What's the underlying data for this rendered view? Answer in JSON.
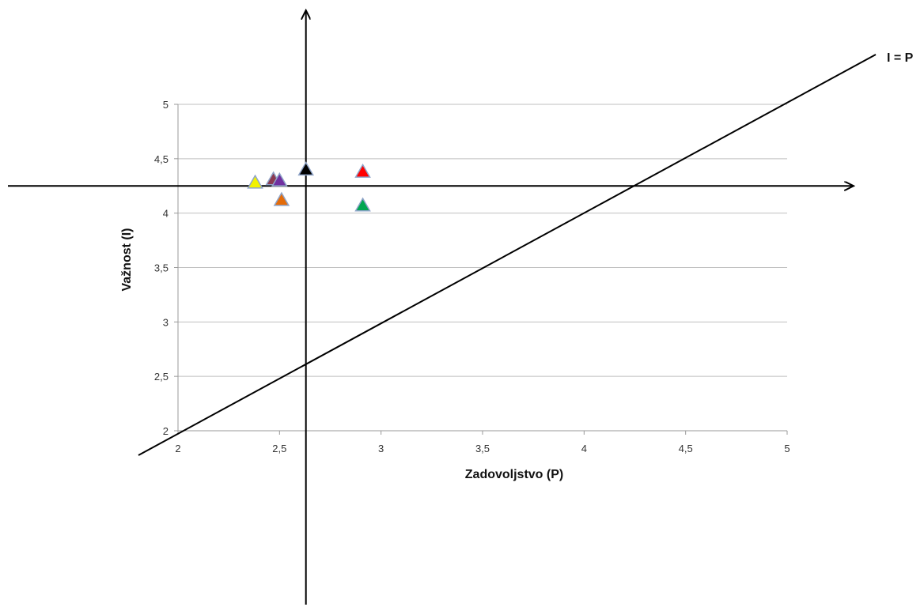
{
  "chart_data": {
    "type": "scatter",
    "title": "",
    "xlabel": "Zadovoljstvo (P)",
    "ylabel": "Važnost (I)",
    "xlim": [
      2,
      5
    ],
    "ylim": [
      2,
      5
    ],
    "x_ticks": [
      "2",
      "2,5",
      "3",
      "3,5",
      "4",
      "4,5",
      "5"
    ],
    "y_ticks": [
      "2",
      "2,5",
      "3",
      "3,5",
      "4",
      "4,5",
      "5"
    ],
    "x_tick_values": [
      2,
      2.5,
      3,
      3.5,
      4,
      4.5,
      5
    ],
    "y_tick_values": [
      2,
      2.5,
      3,
      3.5,
      4,
      4.5,
      5
    ],
    "grid": "horizontal",
    "points": [
      {
        "x": 2.38,
        "y": 4.28,
        "color": "#f2f200"
      },
      {
        "x": 2.47,
        "y": 4.31,
        "color": "#8b3a52"
      },
      {
        "x": 2.5,
        "y": 4.3,
        "color": "#7030a0"
      },
      {
        "x": 2.51,
        "y": 4.12,
        "color": "#e46c0a"
      },
      {
        "x": 2.63,
        "y": 4.4,
        "color": "#000000"
      },
      {
        "x": 2.91,
        "y": 4.38,
        "color": "#ff0000"
      },
      {
        "x": 2.91,
        "y": 4.07,
        "color": "#00a651"
      }
    ],
    "point_marker": "triangle",
    "point_outline_color": "#8fa4c8",
    "reference_lines": {
      "diagonal_label": "I = P",
      "vertical_mean_x": 2.63,
      "horizontal_mean_y": 4.25
    }
  }
}
